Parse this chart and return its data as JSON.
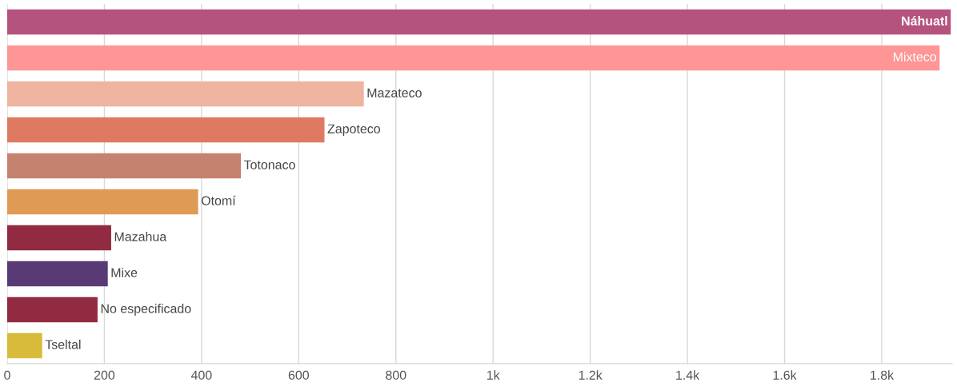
{
  "chart_data": {
    "type": "bar",
    "orientation": "horizontal",
    "tick_labels": "x",
    "grid": "x",
    "categories": [
      "Náhuatl",
      "Mixteco",
      "Mazateco",
      "Zapoteco",
      "Totonaco",
      "Otomí",
      "Mazahua",
      "Mixe",
      "No especificado",
      "Tseltal"
    ],
    "values": [
      1942,
      1919,
      734,
      653,
      481,
      393,
      214,
      207,
      186,
      72
    ],
    "colors": [
      "#b5537f",
      "#fe9696",
      "#efb4a0",
      "#df7a62",
      "#c5826f",
      "#df9b55",
      "#922b42",
      "#5a3a74",
      "#922b42",
      "#d9bb3c"
    ],
    "xlim": [
      0,
      1945
    ],
    "xticks": [
      0,
      200,
      400,
      600,
      800,
      {
        "value": 1000,
        "label": "1k"
      },
      {
        "value": 1200,
        "label": "1.2k"
      },
      {
        "value": 1400,
        "label": "1.4k"
      },
      {
        "value": 1600,
        "label": "1.6k"
      },
      {
        "value": 1800,
        "label": "1.8k"
      }
    ]
  }
}
